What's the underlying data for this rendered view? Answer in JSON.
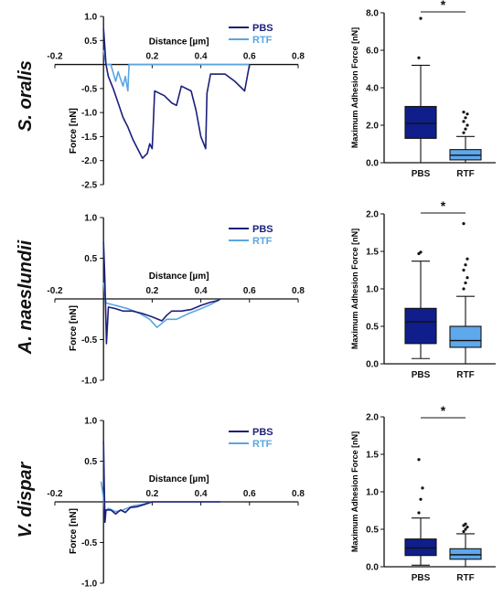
{
  "colors": {
    "pbs": "#1c1f7a",
    "rtf": "#5aa6e2",
    "pbs_box": "#0f1e8a",
    "rtf_box": "#5ea8ec",
    "axis": "#111111"
  },
  "panels": [
    {
      "species": "S. oralis",
      "curve": {
        "xlabel": "Distance [µm]",
        "ylabel": "Force [nN]",
        "xlim": [
          -0.2,
          0.8
        ],
        "xticks": [
          "-0.2",
          "0.2",
          "0.4",
          "0.6",
          "0.8"
        ],
        "ylim": [
          -2.5,
          1.0
        ],
        "yticks": [
          "1.0",
          "0.5",
          "-0.5",
          "-1.0",
          "-1.5",
          "-2.0",
          "-2.5"
        ],
        "legend": [
          "PBS",
          "RTF"
        ]
      },
      "box": {
        "ylabel": "Maximum Adhesion Force [nN]",
        "categories": [
          "PBS",
          "RTF"
        ],
        "ylim": [
          0,
          8.0
        ],
        "yticks": [
          "0.0",
          "2.0",
          "4.0",
          "6.0",
          "8.0"
        ],
        "significance": "*"
      }
    },
    {
      "species": "A. naeslundii",
      "curve": {
        "xlabel": "Distance [µm]",
        "ylabel": "Force [nN]",
        "xlim": [
          -0.2,
          0.8
        ],
        "xticks": [
          "-0.2",
          "0.2",
          "0.4",
          "0.6",
          "0.8"
        ],
        "ylim": [
          -1.0,
          1.0
        ],
        "yticks": [
          "1.0",
          "0.5",
          "-0.5",
          "-1.0"
        ],
        "legend": [
          "PBS",
          "RTF"
        ]
      },
      "box": {
        "ylabel": "Maximum Adhesion Force [nN]",
        "categories": [
          "PBS",
          "RTF"
        ],
        "ylim": [
          0,
          2.0
        ],
        "yticks": [
          "0.0",
          "0.5",
          "1.0",
          "1.5",
          "2.0"
        ],
        "significance": "*"
      }
    },
    {
      "species": "V. dispar",
      "curve": {
        "xlabel": "Distance [µm]",
        "ylabel": "Force [nN]",
        "xlim": [
          -0.2,
          0.8
        ],
        "xticks": [
          "-0.2",
          "0.2",
          "0.4",
          "0.6",
          "0.8"
        ],
        "ylim": [
          -1.0,
          1.0
        ],
        "yticks": [
          "1.0",
          "0.5",
          "-0.5",
          "-1.0"
        ],
        "legend": [
          "PBS",
          "RTF"
        ]
      },
      "box": {
        "ylabel": "Maximum Adhesion Force [nN]",
        "categories": [
          "PBS",
          "RTF"
        ],
        "ylim": [
          0,
          2.0
        ],
        "yticks": [
          "0.0",
          "0.5",
          "1.0",
          "1.5",
          "2.0"
        ],
        "significance": "*"
      }
    }
  ],
  "chart_data": [
    {
      "type": "line",
      "panel": "S. oralis",
      "xlabel": "Distance [µm]",
      "ylabel": "Force [nN]",
      "xlim": [
        -0.2,
        0.8
      ],
      "ylim": [
        -2.5,
        1.0
      ],
      "grid": false,
      "legend_position": "top-right",
      "series": [
        {
          "name": "PBS",
          "points": [
            [
              0.0,
              0.75
            ],
            [
              0.005,
              0.4
            ],
            [
              0.01,
              0.0
            ],
            [
              0.02,
              -0.25
            ],
            [
              0.04,
              -0.5
            ],
            [
              0.06,
              -0.8
            ],
            [
              0.08,
              -1.1
            ],
            [
              0.1,
              -1.3
            ],
            [
              0.12,
              -1.55
            ],
            [
              0.14,
              -1.75
            ],
            [
              0.16,
              -1.95
            ],
            [
              0.18,
              -1.85
            ],
            [
              0.19,
              -1.65
            ],
            [
              0.2,
              -1.75
            ],
            [
              0.205,
              -1.2
            ],
            [
              0.21,
              -0.55
            ],
            [
              0.25,
              -0.65
            ],
            [
              0.28,
              -0.8
            ],
            [
              0.3,
              -0.85
            ],
            [
              0.32,
              -0.45
            ],
            [
              0.36,
              -0.55
            ],
            [
              0.38,
              -0.95
            ],
            [
              0.4,
              -1.5
            ],
            [
              0.42,
              -1.75
            ],
            [
              0.425,
              -0.6
            ],
            [
              0.44,
              -0.2
            ],
            [
              0.5,
              -0.2
            ],
            [
              0.54,
              -0.35
            ],
            [
              0.58,
              -0.55
            ],
            [
              0.6,
              0.0
            ]
          ]
        },
        {
          "name": "RTF",
          "points": [
            [
              0.0,
              0.3
            ],
            [
              0.01,
              0.0
            ],
            [
              0.03,
              0.0
            ],
            [
              0.05,
              -0.35
            ],
            [
              0.06,
              -0.15
            ],
            [
              0.08,
              -0.45
            ],
            [
              0.09,
              -0.25
            ],
            [
              0.1,
              -0.55
            ],
            [
              0.105,
              0.0
            ],
            [
              0.6,
              0.0
            ]
          ]
        }
      ]
    },
    {
      "type": "box",
      "panel": "S. oralis",
      "ylabel": "Maximum Adhesion Force [nN]",
      "categories": [
        "PBS",
        "RTF"
      ],
      "ylim": [
        0,
        8.0
      ],
      "boxes": [
        {
          "name": "PBS",
          "whisker_low": 0.0,
          "q1": 1.3,
          "median": 2.1,
          "q3": 3.0,
          "whisker_high": 5.2,
          "outliers": [
            5.6,
            7.7
          ]
        },
        {
          "name": "RTF",
          "whisker_low": 0.0,
          "q1": 0.15,
          "median": 0.4,
          "q3": 0.7,
          "whisker_high": 1.4,
          "outliers": [
            1.6,
            1.8,
            2.0,
            2.2,
            2.4,
            2.6,
            2.7
          ]
        }
      ],
      "significance": "*"
    },
    {
      "type": "line",
      "panel": "A. naeslundii",
      "xlabel": "Distance [µm]",
      "ylabel": "Force [nN]",
      "xlim": [
        -0.2,
        0.8
      ],
      "ylim": [
        -1.0,
        1.0
      ],
      "grid": false,
      "legend_position": "top-right",
      "series": [
        {
          "name": "PBS",
          "points": [
            [
              0.0,
              0.7
            ],
            [
              0.005,
              0.3
            ],
            [
              0.01,
              -0.3
            ],
            [
              0.012,
              -0.55
            ],
            [
              0.02,
              -0.1
            ],
            [
              0.05,
              -0.12
            ],
            [
              0.08,
              -0.15
            ],
            [
              0.12,
              -0.15
            ],
            [
              0.16,
              -0.18
            ],
            [
              0.2,
              -0.22
            ],
            [
              0.24,
              -0.27
            ],
            [
              0.26,
              -0.2
            ],
            [
              0.28,
              -0.15
            ],
            [
              0.32,
              -0.15
            ],
            [
              0.36,
              -0.13
            ],
            [
              0.4,
              -0.08
            ],
            [
              0.44,
              -0.04
            ],
            [
              0.47,
              -0.02
            ],
            [
              0.48,
              0.0
            ]
          ]
        },
        {
          "name": "RTF",
          "points": [
            [
              0.0,
              0.2
            ],
            [
              0.01,
              -0.05
            ],
            [
              0.05,
              -0.08
            ],
            [
              0.1,
              -0.12
            ],
            [
              0.15,
              -0.18
            ],
            [
              0.19,
              -0.25
            ],
            [
              0.22,
              -0.35
            ],
            [
              0.24,
              -0.3
            ],
            [
              0.26,
              -0.25
            ],
            [
              0.3,
              -0.25
            ],
            [
              0.35,
              -0.18
            ],
            [
              0.4,
              -0.12
            ],
            [
              0.44,
              -0.07
            ],
            [
              0.47,
              -0.02
            ],
            [
              0.48,
              0.0
            ]
          ]
        }
      ]
    },
    {
      "type": "box",
      "panel": "A. naeslundii",
      "ylabel": "Maximum Adhesion Force [nN]",
      "categories": [
        "PBS",
        "RTF"
      ],
      "ylim": [
        0,
        2.0
      ],
      "boxes": [
        {
          "name": "PBS",
          "whisker_low": 0.07,
          "q1": 0.27,
          "median": 0.56,
          "q3": 0.74,
          "whisker_high": 1.37,
          "outliers": [
            1.47,
            1.49
          ]
        },
        {
          "name": "RTF",
          "whisker_low": 0.0,
          "q1": 0.22,
          "median": 0.31,
          "q3": 0.5,
          "whisker_high": 0.9,
          "outliers": [
            1.0,
            1.08,
            1.15,
            1.25,
            1.32,
            1.4,
            1.87
          ]
        }
      ],
      "significance": "*"
    },
    {
      "type": "line",
      "panel": "V. dispar",
      "xlabel": "Distance [µm]",
      "ylabel": "Force [nN]",
      "xlim": [
        -0.2,
        0.8
      ],
      "ylim": [
        -1.0,
        1.0
      ],
      "grid": false,
      "legend_position": "top-right",
      "series": [
        {
          "name": "PBS",
          "points": [
            [
              0.0,
              0.75
            ],
            [
              0.003,
              0.2
            ],
            [
              0.006,
              -0.25
            ],
            [
              0.01,
              -0.1
            ],
            [
              0.03,
              -0.1
            ],
            [
              0.05,
              -0.15
            ],
            [
              0.07,
              -0.1
            ],
            [
              0.09,
              -0.13
            ],
            [
              0.11,
              -0.07
            ],
            [
              0.14,
              -0.06
            ],
            [
              0.17,
              -0.03
            ],
            [
              0.2,
              0.0
            ],
            [
              0.48,
              0.0
            ]
          ]
        },
        {
          "name": "RTF",
          "points": [
            [
              -0.01,
              0.25
            ],
            [
              0.0,
              0.05
            ],
            [
              0.005,
              -0.12
            ],
            [
              0.02,
              -0.08
            ],
            [
              0.05,
              -0.12
            ],
            [
              0.08,
              -0.1
            ],
            [
              0.12,
              -0.05
            ],
            [
              0.16,
              -0.03
            ],
            [
              0.2,
              0.0
            ]
          ]
        }
      ]
    },
    {
      "type": "box",
      "panel": "V. dispar",
      "ylabel": "Maximum Adhesion Force [nN]",
      "categories": [
        "PBS",
        "RTF"
      ],
      "ylim": [
        0,
        2.0
      ],
      "boxes": [
        {
          "name": "PBS",
          "whisker_low": 0.02,
          "q1": 0.15,
          "median": 0.25,
          "q3": 0.37,
          "whisker_high": 0.65,
          "outliers": [
            0.72,
            0.9,
            1.05,
            1.43
          ]
        },
        {
          "name": "RTF",
          "whisker_low": 0.0,
          "q1": 0.1,
          "median": 0.16,
          "q3": 0.24,
          "whisker_high": 0.44,
          "outliers": [
            0.47,
            0.5,
            0.53,
            0.55,
            0.57
          ]
        }
      ],
      "significance": "*"
    }
  ]
}
